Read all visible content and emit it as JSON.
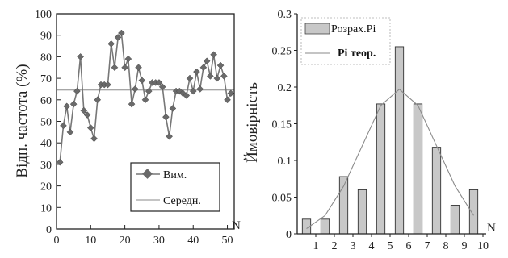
{
  "chart_data": [
    {
      "type": "line",
      "ylabel": "Відн. частота (%)",
      "xlabel": "N",
      "xlim": [
        0,
        52
      ],
      "ylim": [
        0,
        100
      ],
      "xticks": [
        0,
        10,
        20,
        30,
        40,
        50
      ],
      "yticks": [
        0,
        10,
        20,
        30,
        40,
        50,
        60,
        70,
        80,
        90,
        100
      ],
      "grid": false,
      "legend_position": "bottom-right",
      "series": [
        {
          "name": "Вим.",
          "style": "line-diamond",
          "color": "#777777",
          "marker_color": "#6a6a6a",
          "x": [
            1,
            2,
            3,
            4,
            5,
            6,
            7,
            8,
            9,
            10,
            11,
            12,
            13,
            14,
            15,
            16,
            17,
            18,
            19,
            20,
            21,
            22,
            23,
            24,
            25,
            26,
            27,
            28,
            29,
            30,
            31,
            32,
            33,
            34,
            35,
            36,
            37,
            38,
            39,
            40,
            41,
            42,
            43,
            44,
            45,
            46,
            47,
            48,
            49,
            50,
            51
          ],
          "y": [
            31,
            48,
            57,
            45,
            58,
            64,
            80,
            55,
            53,
            47,
            42,
            60,
            67,
            67,
            67,
            86,
            75,
            89,
            91,
            75,
            79,
            58,
            65,
            75,
            69,
            60,
            64,
            68,
            68,
            68,
            66,
            52,
            43,
            56,
            64,
            64,
            63,
            62,
            70,
            64,
            73,
            65,
            75,
            78,
            71,
            81,
            70,
            76,
            71,
            60,
            63
          ]
        },
        {
          "name": "Середн.",
          "style": "line",
          "color": "#888888",
          "x": [
            0,
            52
          ],
          "y": [
            64.5,
            64.5
          ]
        }
      ]
    },
    {
      "type": "bar",
      "ylabel": "Ймовірність",
      "xlabel": "N",
      "xlim": [
        0,
        10
      ],
      "ylim": [
        0,
        0.3
      ],
      "xticks": [
        1,
        2,
        3,
        4,
        5,
        6,
        7,
        8,
        9,
        10
      ],
      "yticks": [
        0,
        0.05,
        0.1,
        0.15,
        0.2,
        0.25,
        0.3
      ],
      "ytick_labels": [
        "0",
        "0.05",
        "0.1",
        "0.15",
        "0.2",
        "0.25",
        "0.3"
      ],
      "grid": false,
      "legend_position": "top-left",
      "bar_positions": [
        0.5,
        1.5,
        2.5,
        3.5,
        4.5,
        5.5,
        6.5,
        7.5,
        8.5,
        9.5
      ],
      "series": [
        {
          "name": "Розрах.Pi",
          "style": "bar",
          "color": "#c8c8c8",
          "values": [
            0.02,
            0.02,
            0.078,
            0.06,
            0.177,
            0.255,
            0.177,
            0.118,
            0.039,
            0.06
          ]
        },
        {
          "name": "Pi теор.",
          "style": "line",
          "color": "#8a8a8a",
          "values": [
            0.007,
            0.025,
            0.065,
            0.12,
            0.175,
            0.197,
            0.175,
            0.12,
            0.065,
            0.025
          ]
        }
      ]
    }
  ]
}
